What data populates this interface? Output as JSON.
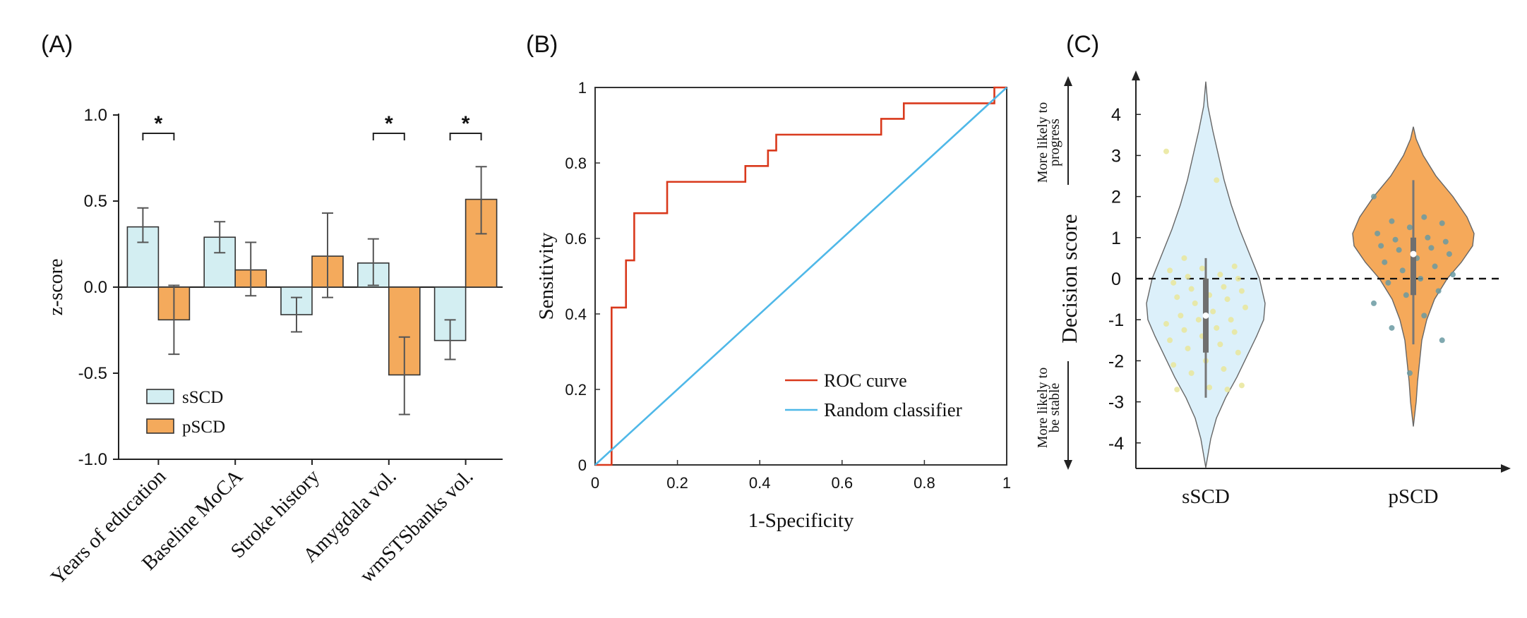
{
  "panel_labels": {
    "a": "(A)",
    "b": "(B)",
    "c": "(C)"
  },
  "colors": {
    "sSCD_fill": "#d3eef2",
    "pSCD_fill": "#f4aa5c",
    "roc": "#d9391c",
    "random": "#4fb8e8",
    "violin_s": "#dcf0fa",
    "violin_p": "#f5a95a",
    "dots_s": "#e9e69a",
    "dots_p": "#6a9aa2"
  },
  "chart_data": [
    {
      "type": "bar",
      "panel": "A",
      "categories": [
        "Years of education",
        "Baseline MoCA",
        "Stroke history",
        "Amygdala vol.",
        "wmSTSbanks vol."
      ],
      "series": [
        {
          "name": "sSCD",
          "values": [
            0.35,
            0.29,
            -0.16,
            0.14,
            -0.31
          ],
          "err_low": [
            0.26,
            0.2,
            -0.26,
            0.01,
            -0.42
          ],
          "err_high": [
            0.46,
            0.38,
            -0.06,
            0.28,
            -0.19
          ]
        },
        {
          "name": "pSCD",
          "values": [
            -0.19,
            0.1,
            0.18,
            -0.51,
            0.51
          ],
          "err_low": [
            -0.39,
            -0.05,
            -0.06,
            -0.74,
            0.31
          ],
          "err_high": [
            0.01,
            0.26,
            0.43,
            -0.29,
            0.7
          ]
        }
      ],
      "significance": [
        {
          "category_index": 0,
          "label": "*"
        },
        {
          "category_index": 3,
          "label": "*"
        },
        {
          "category_index": 4,
          "label": "*"
        }
      ],
      "ylabel": "z-score",
      "ylim": [
        -1.0,
        1.0
      ],
      "yticks": [
        "1.0",
        "0.5",
        "0.0",
        "-0.5",
        "-1.0"
      ],
      "legend": "bottom-left"
    },
    {
      "type": "line",
      "panel": "B",
      "xlabel": "1-Specificity",
      "ylabel": "Sensitivity",
      "xlim": [
        0,
        1
      ],
      "ylim": [
        0,
        1
      ],
      "xticks": [
        "0",
        "0.2",
        "0.4",
        "0.6",
        "0.8",
        "1"
      ],
      "yticks": [
        "0",
        "0.2",
        "0.4",
        "0.6",
        "0.8",
        "1"
      ],
      "series": [
        {
          "name": "ROC curve",
          "x": [
            0,
            0.04,
            0.04,
            0.075,
            0.075,
            0.095,
            0.095,
            0.175,
            0.175,
            0.365,
            0.365,
            0.42,
            0.42,
            0.44,
            0.44,
            0.695,
            0.695,
            0.75,
            0.75,
            0.97,
            0.97,
            1
          ],
          "y": [
            0,
            0,
            0.417,
            0.417,
            0.542,
            0.542,
            0.667,
            0.667,
            0.75,
            0.75,
            0.792,
            0.792,
            0.833,
            0.833,
            0.875,
            0.875,
            0.917,
            0.917,
            0.958,
            0.958,
            1,
            1
          ]
        },
        {
          "name": "Random classifier",
          "x": [
            0,
            1
          ],
          "y": [
            0,
            1
          ]
        }
      ],
      "legend": "bottom-right"
    },
    {
      "type": "scatter",
      "panel": "C",
      "categories": [
        "sSCD",
        "pSCD"
      ],
      "ylabel": "Decision score",
      "ylim": [
        -4.6,
        4.8
      ],
      "yticks": [
        "4",
        "3",
        "2",
        "1",
        "0",
        "-1",
        "-2",
        "-3",
        "-4"
      ],
      "reference_line": 0,
      "arrow_labels": {
        "up": [
          "More likely to",
          "progress"
        ],
        "down": [
          "More likely to",
          "be stable"
        ]
      },
      "groups": [
        {
          "name": "sSCD",
          "median": -0.9,
          "q1": -1.8,
          "q3": 0.0,
          "whisker_low": -2.9,
          "whisker_high": 0.5,
          "points": [
            3.1,
            2.4,
            0.5,
            0.3,
            0.25,
            0.2,
            0.1,
            0.05,
            0.0,
            -0.05,
            -0.1,
            -0.2,
            -0.25,
            -0.3,
            -0.4,
            -0.45,
            -0.5,
            -0.6,
            -0.7,
            -0.8,
            -0.9,
            -1.0,
            -1.0,
            -1.1,
            -1.2,
            -1.25,
            -1.3,
            -1.4,
            -1.5,
            -1.6,
            -1.7,
            -1.8,
            -2.0,
            -2.1,
            -2.2,
            -2.3,
            -2.6,
            -2.65,
            -2.7,
            -2.7
          ]
        },
        {
          "name": "pSCD",
          "median": 0.6,
          "q1": -0.4,
          "q3": 1.0,
          "whisker_low": -1.6,
          "whisker_high": 2.4,
          "points": [
            2.0,
            1.5,
            1.4,
            1.35,
            1.25,
            1.1,
            1.0,
            0.95,
            0.9,
            0.85,
            0.8,
            0.75,
            0.7,
            0.6,
            0.5,
            0.4,
            0.3,
            0.2,
            0.1,
            0.0,
            -0.1,
            -0.3,
            -0.4,
            -0.6,
            -0.9,
            -1.2,
            -1.5,
            -2.3
          ]
        }
      ]
    }
  ]
}
